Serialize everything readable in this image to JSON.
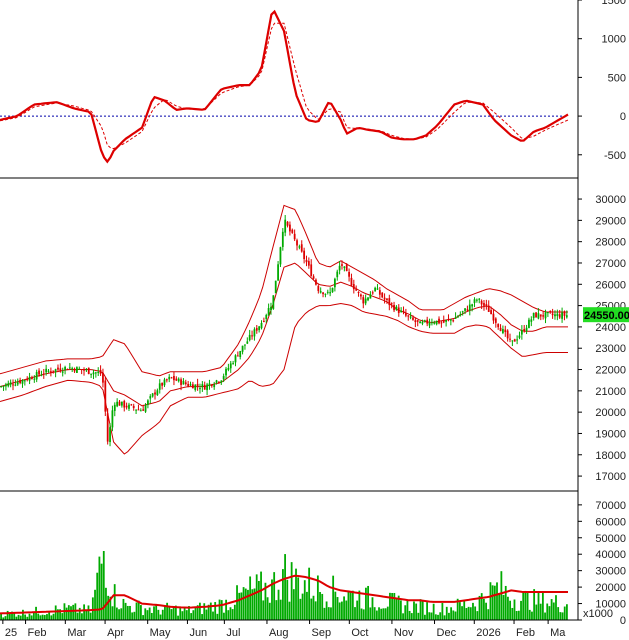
{
  "chart_data": [
    {
      "type": "line",
      "panel": "oscillator",
      "ylim": [
        -800,
        1500
      ],
      "yticks": [
        "1500",
        "1000",
        "500",
        "0",
        "-500"
      ],
      "ytick_values": [
        1500,
        1000,
        500,
        0,
        -500
      ],
      "zero_line": "dotted",
      "colors": {
        "line": "#dd0000",
        "zero": "#0000aa"
      },
      "series": [
        {
          "style": "solid",
          "t": [
            0,
            0.03,
            0.06,
            0.1,
            0.13,
            0.16,
            0.18,
            0.19,
            0.2,
            0.22,
            0.25,
            0.27,
            0.29,
            0.31,
            0.33,
            0.36,
            0.39,
            0.42,
            0.44,
            0.46,
            0.48,
            0.5,
            0.52,
            0.54,
            0.56,
            0.58,
            0.6,
            0.61,
            0.63,
            0.65,
            0.67,
            0.69,
            0.71,
            0.73,
            0.75,
            0.77,
            0.8,
            0.82,
            0.85,
            0.87,
            0.9,
            0.92,
            0.94,
            0.96,
            1.0
          ],
          "values": [
            -50,
            0,
            150,
            180,
            100,
            50,
            -500,
            -600,
            -450,
            -300,
            -150,
            250,
            200,
            80,
            100,
            80,
            350,
            400,
            400,
            600,
            1400,
            1100,
            300,
            -50,
            -80,
            200,
            -50,
            -230,
            -150,
            -180,
            -200,
            -280,
            -300,
            -300,
            -250,
            -120,
            150,
            200,
            150,
            -50,
            -250,
            -330,
            -200,
            -150,
            20
          ]
        },
        {
          "style": "dashed",
          "t": [
            0,
            0.03,
            0.06,
            0.1,
            0.13,
            0.16,
            0.18,
            0.19,
            0.2,
            0.22,
            0.25,
            0.27,
            0.29,
            0.31,
            0.33,
            0.36,
            0.39,
            0.42,
            0.44,
            0.46,
            0.48,
            0.5,
            0.52,
            0.54,
            0.56,
            0.58,
            0.6,
            0.61,
            0.63,
            0.65,
            0.67,
            0.69,
            0.71,
            0.73,
            0.75,
            0.77,
            0.8,
            0.82,
            0.85,
            0.87,
            0.9,
            0.92,
            0.94,
            0.96,
            1.0
          ],
          "values": [
            -60,
            -20,
            120,
            170,
            130,
            70,
            -150,
            -400,
            -420,
            -350,
            -200,
            100,
            220,
            130,
            90,
            90,
            300,
            380,
            400,
            550,
            1200,
            1200,
            600,
            100,
            -50,
            100,
            50,
            -150,
            -160,
            -170,
            -190,
            -250,
            -290,
            -300,
            -270,
            -170,
            50,
            180,
            170,
            50,
            -150,
            -300,
            -260,
            -180,
            -50
          ]
        }
      ]
    },
    {
      "type": "candlestick",
      "panel": "price",
      "ylim": [
        16300,
        30800
      ],
      "yticks": [
        "30000",
        "29000",
        "28000",
        "27000",
        "26000",
        "25000",
        "24000",
        "23000",
        "22000",
        "21000",
        "20000",
        "19000",
        "18000",
        "17000"
      ],
      "ytick_values": [
        30000,
        29000,
        28000,
        27000,
        26000,
        25000,
        24000,
        23000,
        22000,
        21000,
        20000,
        19000,
        18000,
        17000
      ],
      "last_price_label": "24550.00",
      "colors": {
        "up": "#00aa00",
        "down": "#dd0000",
        "band": "#cc0000",
        "badge": "#22dd22"
      },
      "close": {
        "t": [
          0,
          0.04,
          0.08,
          0.12,
          0.16,
          0.18,
          0.19,
          0.2,
          0.22,
          0.25,
          0.28,
          0.3,
          0.33,
          0.36,
          0.39,
          0.42,
          0.44,
          0.46,
          0.48,
          0.5,
          0.52,
          0.54,
          0.56,
          0.58,
          0.6,
          0.62,
          0.64,
          0.66,
          0.68,
          0.7,
          0.72,
          0.74,
          0.76,
          0.78,
          0.8,
          0.82,
          0.84,
          0.86,
          0.88,
          0.9,
          0.92,
          0.94,
          0.96,
          0.98,
          1.0
        ],
        "values": [
          21200,
          21500,
          21900,
          22100,
          21900,
          21800,
          18500,
          20500,
          20300,
          20100,
          21200,
          21600,
          21300,
          21200,
          21600,
          22800,
          23500,
          24200,
          25200,
          29000,
          28000,
          27000,
          25800,
          25500,
          27000,
          26000,
          25200,
          25800,
          25200,
          24800,
          24400,
          24100,
          24300,
          24200,
          24400,
          24800,
          25300,
          24800,
          24000,
          23200,
          23800,
          24550,
          24550,
          24550,
          24550
        ]
      },
      "bands": {
        "t": [
          0,
          0.04,
          0.08,
          0.12,
          0.16,
          0.18,
          0.2,
          0.22,
          0.25,
          0.28,
          0.3,
          0.33,
          0.36,
          0.39,
          0.42,
          0.44,
          0.46,
          0.48,
          0.5,
          0.52,
          0.54,
          0.56,
          0.58,
          0.6,
          0.62,
          0.64,
          0.66,
          0.68,
          0.7,
          0.72,
          0.74,
          0.76,
          0.78,
          0.8,
          0.82,
          0.84,
          0.86,
          0.88,
          0.9,
          0.92,
          0.94,
          0.96
        ],
        "upper": [
          21800,
          22100,
          22400,
          22500,
          22500,
          22600,
          23400,
          23200,
          21900,
          21700,
          21900,
          21900,
          21900,
          22100,
          23200,
          24300,
          25600,
          27700,
          29700,
          29500,
          28300,
          27000,
          26800,
          27100,
          26800,
          26500,
          26200,
          25800,
          25500,
          25200,
          24800,
          24800,
          24800,
          25100,
          25400,
          25600,
          25800,
          25700,
          25500,
          25200,
          24900,
          24700
        ],
        "middle": [
          21200,
          21500,
          21800,
          22000,
          22000,
          21900,
          21000,
          20800,
          20300,
          20500,
          21000,
          21200,
          21200,
          21400,
          22000,
          22600,
          23500,
          25000,
          26800,
          27000,
          26500,
          26000,
          25900,
          26100,
          25900,
          25600,
          25400,
          25200,
          24800,
          24600,
          24300,
          24200,
          24300,
          24400,
          24700,
          24900,
          25000,
          24600,
          24100,
          23800,
          23800,
          24000
        ],
        "lower": [
          20500,
          20800,
          21200,
          21500,
          21400,
          21200,
          18600,
          18000,
          18900,
          19500,
          20300,
          20700,
          20700,
          20900,
          21100,
          21500,
          21200,
          21300,
          22000,
          24100,
          24700,
          25000,
          25000,
          25100,
          25000,
          24700,
          24600,
          24500,
          24300,
          24000,
          23800,
          23700,
          23700,
          23700,
          24000,
          24100,
          24000,
          23500,
          23000,
          22600,
          22700,
          22800
        ]
      }
    },
    {
      "type": "bar",
      "panel": "volume",
      "ylim": [
        0,
        76000
      ],
      "yticks": [
        "70000",
        "60000",
        "50000",
        "40000",
        "30000",
        "20000",
        "10000",
        "0"
      ],
      "ytick_values": [
        70000,
        60000,
        50000,
        40000,
        30000,
        20000,
        10000,
        0
      ],
      "units_label": "x1000",
      "colors": {
        "bar": "#00aa00",
        "ma": "#dd0000"
      },
      "peaks": {
        "t": [
          0,
          0.04,
          0.08,
          0.12,
          0.16,
          0.185,
          0.19,
          0.2,
          0.22,
          0.25,
          0.28,
          0.3,
          0.33,
          0.36,
          0.39,
          0.42,
          0.44,
          0.46,
          0.48,
          0.5,
          0.52,
          0.54,
          0.56,
          0.58,
          0.6,
          0.62,
          0.64,
          0.66,
          0.68,
          0.7,
          0.72,
          0.74,
          0.76,
          0.78,
          0.8,
          0.82,
          0.84,
          0.86,
          0.88,
          0.9,
          0.92,
          0.94,
          0.96,
          1.0
        ],
        "values": [
          6000,
          7000,
          9000,
          11000,
          9000,
          72000,
          45000,
          25000,
          14000,
          12000,
          10000,
          11000,
          9000,
          12000,
          15000,
          22000,
          28000,
          30000,
          32000,
          45000,
          38000,
          35000,
          30000,
          28000,
          26000,
          24000,
          22000,
          20000,
          18000,
          16000,
          14000,
          13000,
          12000,
          11000,
          13000,
          15000,
          18000,
          25000,
          32000,
          22000,
          20000,
          19000,
          18000,
          15000
        ]
      },
      "ma": {
        "t": [
          0,
          0.04,
          0.08,
          0.12,
          0.16,
          0.18,
          0.2,
          0.22,
          0.25,
          0.28,
          0.3,
          0.33,
          0.36,
          0.39,
          0.42,
          0.44,
          0.46,
          0.48,
          0.5,
          0.52,
          0.54,
          0.56,
          0.58,
          0.6,
          0.62,
          0.64,
          0.66,
          0.68,
          0.7,
          0.72,
          0.74,
          0.76,
          0.78,
          0.8,
          0.82,
          0.84,
          0.86,
          0.88,
          0.9,
          0.92,
          0.94,
          0.96,
          1.0
        ],
        "values": [
          4000,
          4500,
          5000,
          5500,
          6000,
          6500,
          15000,
          15000,
          10000,
          9000,
          8000,
          7500,
          8000,
          9000,
          12000,
          15000,
          18000,
          22000,
          25000,
          27000,
          26000,
          24000,
          20000,
          18000,
          17000,
          16000,
          15000,
          14000,
          13000,
          12000,
          12000,
          11000,
          11000,
          11000,
          12000,
          13000,
          14000,
          16000,
          18000,
          17000,
          17000,
          17000,
          17000
        ]
      }
    }
  ],
  "x_axis": {
    "labels": [
      "25",
      "Feb",
      "Mar",
      "Apr",
      "May",
      "Jun",
      "Jul",
      "Aug",
      "Sep",
      "Oct",
      "Nov",
      "Dec",
      "2026",
      "Feb",
      "Ma"
    ],
    "t": [
      0.005,
      0.045,
      0.115,
      0.185,
      0.26,
      0.33,
      0.395,
      0.47,
      0.545,
      0.615,
      0.69,
      0.765,
      0.835,
      0.905,
      0.965
    ]
  }
}
